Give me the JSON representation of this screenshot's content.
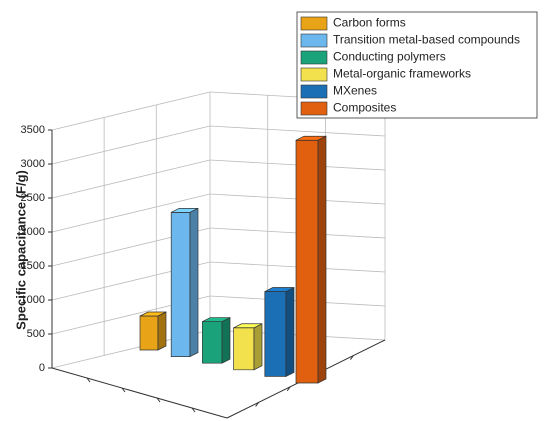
{
  "chart_data": {
    "type": "bar3d",
    "categories": [
      "Carbon forms",
      "Transition metal-based compounds",
      "Conducting polymers",
      "Metal-organic frameworks",
      "MXenes",
      "Composites"
    ],
    "values": [
      500,
      2100,
      600,
      600,
      1200,
      3400
    ],
    "colors": [
      "#e8a317",
      "#6cb8ee",
      "#1aa37a",
      "#f2e14c",
      "#1a6fb5",
      "#e0600f"
    ],
    "ylabel": "Specific capacitance (F/g)",
    "ylim": [
      0,
      3500
    ],
    "yticks": [
      0,
      500,
      1000,
      1500,
      2000,
      2500,
      3000,
      3500
    ],
    "grid": true,
    "legend": "upper right"
  }
}
